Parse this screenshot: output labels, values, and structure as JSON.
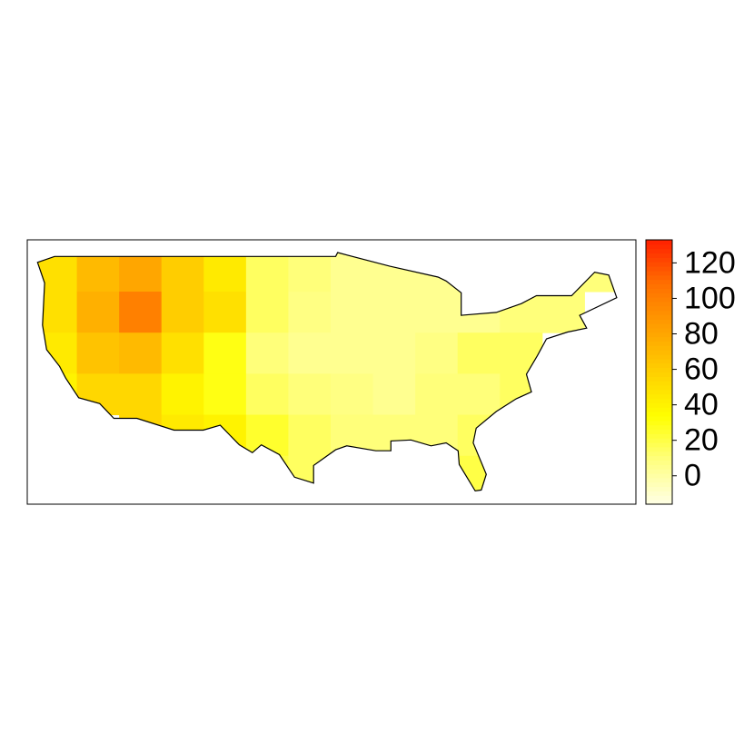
{
  "chart_data": {
    "type": "heatmap",
    "values": [
      [
        50,
        70,
        80,
        60,
        45,
        15,
        10,
        5,
        5,
        5,
        5,
        5,
        10,
        10
      ],
      [
        50,
        75,
        100,
        60,
        50,
        15,
        8,
        5,
        5,
        5,
        5,
        10,
        10,
        null
      ],
      [
        45,
        65,
        70,
        50,
        30,
        10,
        5,
        5,
        5,
        8,
        15,
        15,
        null,
        null
      ],
      [
        40,
        55,
        55,
        40,
        30,
        15,
        10,
        8,
        5,
        10,
        10,
        15,
        null,
        null
      ],
      [
        null,
        null,
        55,
        45,
        40,
        25,
        15,
        10,
        10,
        10,
        15,
        15,
        null,
        null
      ],
      [
        null,
        null,
        null,
        null,
        null,
        20,
        15,
        null,
        null,
        null,
        20,
        null,
        null,
        null
      ]
    ],
    "colorbar": {
      "lim": [
        -16,
        133
      ],
      "ticks": [
        0,
        20,
        40,
        60,
        80,
        100,
        120
      ],
      "colors": [
        "#ffffe6",
        "#ffff80",
        "#ffff00",
        "#ffd000",
        "#ffa000",
        "#ff7000",
        "#ff2000"
      ]
    }
  }
}
